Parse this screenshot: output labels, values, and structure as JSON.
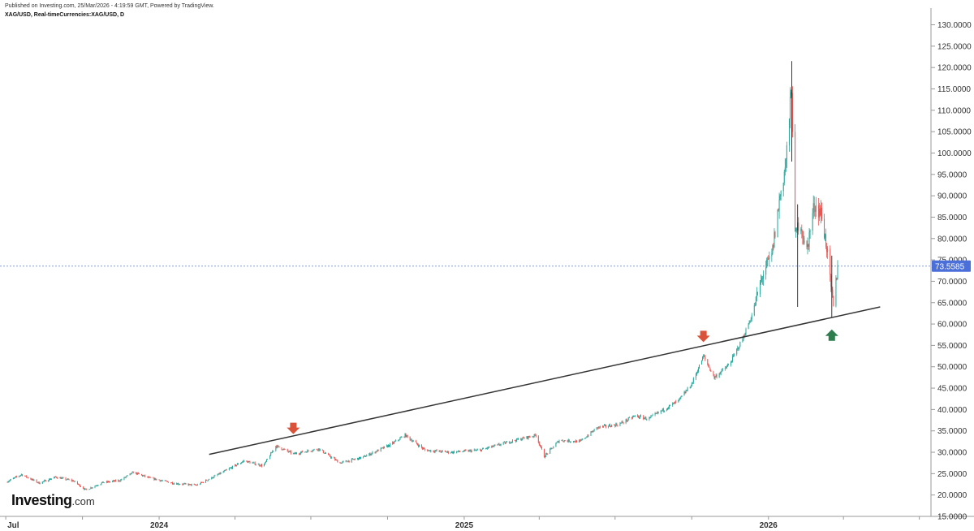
{
  "header": {
    "published": "Published on Investing.com, 25/Mar/2026 - 4:19:59 GMT, Powered by TradingView.",
    "symbol": "XAG/USD, Real-timeCurrencies:XAG/USD, D"
  },
  "logo": {
    "brand": "Investing",
    "dotcom": ".com"
  },
  "chart_data": {
    "type": "candlestick",
    "title": "XAG/USD, Real-timeCurrencies:XAG/USD, D",
    "y_axis": {
      "position": "right",
      "ylim": [
        15,
        132
      ],
      "ticks": [
        "130.0000",
        "125.0000",
        "120.0000",
        "115.0000",
        "110.0000",
        "105.0000",
        "100.0000",
        "95.0000",
        "90.0000",
        "85.0000",
        "80.0000",
        "75.0000",
        "70.0000",
        "65.0000",
        "60.0000",
        "55.0000",
        "50.0000",
        "45.0000",
        "40.0000",
        "35.0000",
        "30.0000",
        "25.0000",
        "20.0000",
        "15.0000"
      ],
      "tick_values": [
        130,
        125,
        120,
        115,
        110,
        105,
        100,
        95,
        90,
        85,
        80,
        75,
        70,
        65,
        60,
        55,
        50,
        45,
        40,
        35,
        30,
        25,
        20,
        15
      ]
    },
    "x_axis": {
      "labels": [
        "Jul",
        "2024",
        "2025",
        "2026"
      ],
      "label_dates": [
        "2023-07-01",
        "2024-01-01",
        "2025-01-01",
        "2026-01-01"
      ],
      "range": [
        "2023-06-27",
        "2026-07-15"
      ]
    },
    "last_price": {
      "label": "73.5585",
      "value": 73.5585,
      "color": "#4a6fd8"
    },
    "colors": {
      "up": "#26a69a",
      "down": "#ef5350",
      "trendline": "#333333",
      "arrow_down": "#d9533a",
      "arrow_up": "#2e7d4f"
    },
    "trendline": {
      "start": [
        "2024-03-01",
        29.5
      ],
      "end": [
        "2026-05-15",
        64.0
      ]
    },
    "annotations": [
      {
        "type": "arrow-down",
        "date": "2024-06-10",
        "value": 33.5
      },
      {
        "type": "arrow-down",
        "date": "2025-10-15",
        "value": 55.0
      },
      {
        "type": "arrow-up",
        "date": "2026-03-18",
        "value": 59.5
      }
    ],
    "price_path": [
      [
        "2023-07-01",
        23.0
      ],
      [
        "2023-07-20",
        24.8
      ],
      [
        "2023-08-10",
        22.8
      ],
      [
        "2023-08-30",
        24.2
      ],
      [
        "2023-09-20",
        23.3
      ],
      [
        "2023-10-05",
        21.2
      ],
      [
        "2023-10-25",
        22.9
      ],
      [
        "2023-11-15",
        23.4
      ],
      [
        "2023-12-01",
        25.3
      ],
      [
        "2023-12-20",
        24.0
      ],
      [
        "2024-01-20",
        22.7
      ],
      [
        "2024-02-15",
        22.3
      ],
      [
        "2024-03-10",
        24.6
      ],
      [
        "2024-04-12",
        28.0
      ],
      [
        "2024-05-05",
        26.8
      ],
      [
        "2024-05-20",
        31.5
      ],
      [
        "2024-06-10",
        29.6
      ],
      [
        "2024-07-10",
        30.8
      ],
      [
        "2024-08-05",
        27.5
      ],
      [
        "2024-09-01",
        28.8
      ],
      [
        "2024-10-05",
        31.8
      ],
      [
        "2024-10-22",
        34.0
      ],
      [
        "2024-11-15",
        30.5
      ],
      [
        "2024-12-15",
        30.0
      ],
      [
        "2025-01-20",
        30.5
      ],
      [
        "2025-02-25",
        32.5
      ],
      [
        "2025-03-28",
        34.0
      ],
      [
        "2025-04-07",
        29.0
      ],
      [
        "2025-04-25",
        32.8
      ],
      [
        "2025-05-20",
        32.5
      ],
      [
        "2025-06-10",
        35.8
      ],
      [
        "2025-07-05",
        36.5
      ],
      [
        "2025-07-25",
        38.5
      ],
      [
        "2025-08-10",
        37.8
      ],
      [
        "2025-08-30",
        40.2
      ],
      [
        "2025-09-15",
        42.0
      ],
      [
        "2025-10-01",
        46.0
      ],
      [
        "2025-10-15",
        52.5
      ],
      [
        "2025-10-28",
        47.5
      ],
      [
        "2025-11-15",
        50.5
      ],
      [
        "2025-12-01",
        56.5
      ],
      [
        "2025-12-12",
        62.0
      ],
      [
        "2025-12-26",
        72.0
      ],
      [
        "2026-01-05",
        76.0
      ],
      [
        "2026-01-15",
        90.0
      ],
      [
        "2026-01-22",
        98.0
      ],
      [
        "2026-01-29",
        116.0
      ],
      [
        "2026-02-02",
        80.0
      ],
      [
        "2026-02-08",
        85.0
      ],
      [
        "2026-02-15",
        76.0
      ],
      [
        "2026-02-25",
        88.0
      ],
      [
        "2026-03-05",
        86.0
      ],
      [
        "2026-03-12",
        78.0
      ],
      [
        "2026-03-17",
        68.0
      ],
      [
        "2026-03-20",
        64.0
      ],
      [
        "2026-03-25",
        73.5585
      ]
    ],
    "extremes": [
      [
        "2026-01-29",
        121.5,
        98.0
      ],
      [
        "2026-02-05",
        88.0,
        64.0
      ],
      [
        "2026-03-18",
        76.0,
        61.5
      ]
    ]
  }
}
